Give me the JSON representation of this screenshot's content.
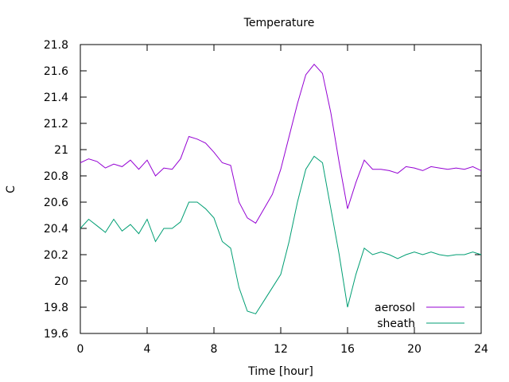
{
  "chart_data": {
    "type": "line",
    "title": "Temperature",
    "xlabel": "Time [hour]",
    "ylabel": "C",
    "xlim": [
      0,
      24
    ],
    "ylim": [
      19.6,
      21.8
    ],
    "xticks": [
      0,
      4,
      8,
      12,
      16,
      20,
      24
    ],
    "yticks": [
      19.6,
      19.8,
      20,
      20.2,
      20.4,
      20.6,
      20.8,
      21,
      21.2,
      21.4,
      21.6,
      21.8
    ],
    "xtick_labels": [
      "0",
      "4",
      "8",
      "12",
      "16",
      "20",
      "24"
    ],
    "ytick_labels": [
      "19.6",
      "19.8",
      "20",
      "20.2",
      "20.4",
      "20.6",
      "20.8",
      "21",
      "21.2",
      "21.4",
      "21.6",
      "21.8"
    ],
    "grid": false,
    "legend_position": "bottom-right",
    "series": [
      {
        "name": "aerosol",
        "color": "#9400d3",
        "x": [
          0,
          0.5,
          1,
          1.5,
          2,
          2.5,
          3,
          3.5,
          4,
          4.5,
          5,
          5.5,
          6,
          6.5,
          7,
          7.5,
          8,
          8.5,
          9,
          9.5,
          10,
          10.5,
          11,
          11.5,
          12,
          12.5,
          13,
          13.5,
          14,
          14.5,
          15,
          15.5,
          16,
          16.5,
          17,
          17.5,
          18,
          18.5,
          19,
          19.5,
          20,
          20.5,
          21,
          21.5,
          22,
          22.5,
          23,
          23.5,
          24
        ],
        "values": [
          20.9,
          20.93,
          20.91,
          20.86,
          20.89,
          20.87,
          20.92,
          20.85,
          20.92,
          20.8,
          20.86,
          20.85,
          20.93,
          21.1,
          21.08,
          21.05,
          20.98,
          20.9,
          20.88,
          20.6,
          20.48,
          20.44,
          20.55,
          20.66,
          20.85,
          21.1,
          21.35,
          21.57,
          21.65,
          21.58,
          21.28,
          20.9,
          20.55,
          20.75,
          20.92,
          20.85,
          20.85,
          20.84,
          20.82,
          20.87,
          20.86,
          20.84,
          20.87,
          20.86,
          20.85,
          20.86,
          20.85,
          20.87,
          20.84
        ]
      },
      {
        "name": "sheath",
        "color": "#009e73",
        "x": [
          0,
          0.5,
          1,
          1.5,
          2,
          2.5,
          3,
          3.5,
          4,
          4.5,
          5,
          5.5,
          6,
          6.5,
          7,
          7.5,
          8,
          8.5,
          9,
          9.5,
          10,
          10.5,
          11,
          11.5,
          12,
          12.5,
          13,
          13.5,
          14,
          14.5,
          15,
          15.5,
          16,
          16.5,
          17,
          17.5,
          18,
          18.5,
          19,
          19.5,
          20,
          20.5,
          21,
          21.5,
          22,
          22.5,
          23,
          23.5,
          24
        ],
        "values": [
          20.4,
          20.47,
          20.42,
          20.37,
          20.47,
          20.38,
          20.43,
          20.36,
          20.47,
          20.3,
          20.4,
          20.4,
          20.45,
          20.6,
          20.6,
          20.55,
          20.48,
          20.3,
          20.25,
          19.95,
          19.77,
          19.75,
          19.85,
          19.95,
          20.05,
          20.3,
          20.6,
          20.85,
          20.95,
          20.9,
          20.55,
          20.2,
          19.8,
          20.05,
          20.25,
          20.2,
          20.22,
          20.2,
          20.17,
          20.2,
          20.22,
          20.2,
          20.22,
          20.2,
          20.19,
          20.2,
          20.2,
          20.22,
          20.2
        ]
      }
    ]
  }
}
